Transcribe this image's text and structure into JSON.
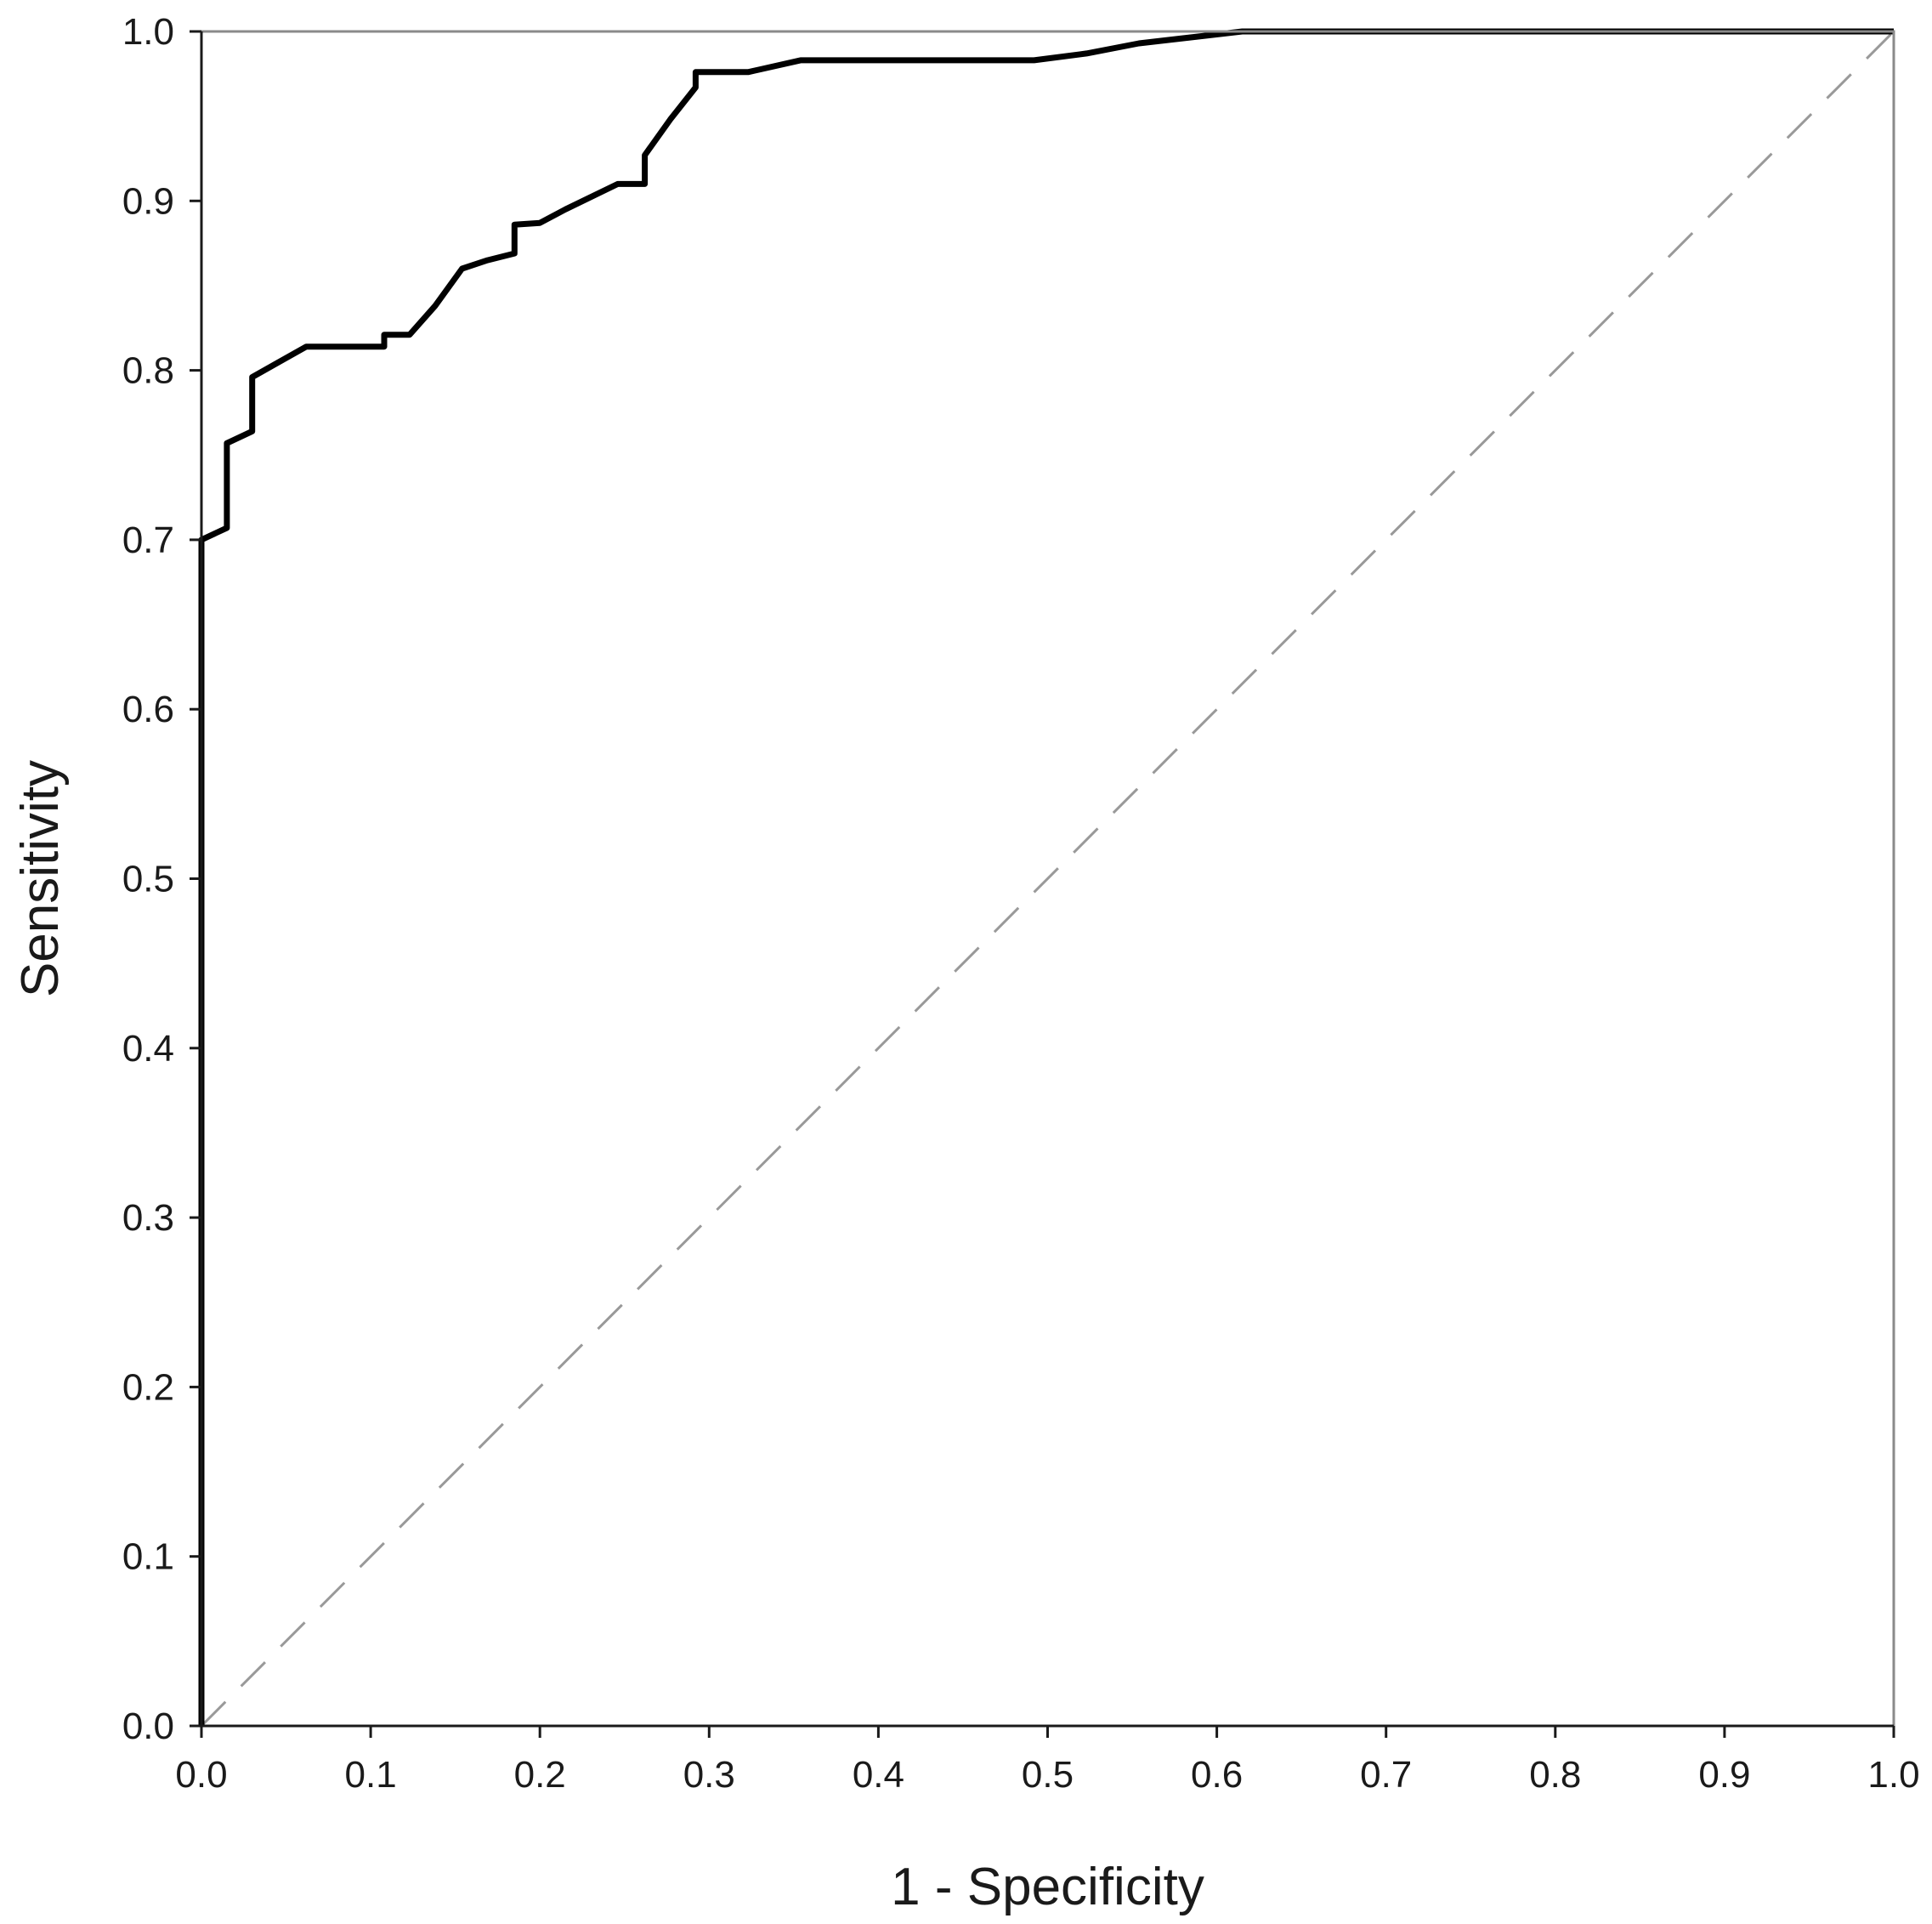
{
  "chart_data": {
    "type": "line",
    "title": "",
    "xlabel": "1 - Specificity",
    "ylabel": "Sensitivity",
    "xlim": [
      0.0,
      1.0
    ],
    "ylim": [
      0.0,
      1.0
    ],
    "grid": false,
    "x_ticks": [
      "0.0",
      "0.1",
      "0.2",
      "0.3",
      "0.4",
      "0.5",
      "0.6",
      "0.7",
      "0.8",
      "0.9",
      "1.0"
    ],
    "y_ticks": [
      "0.0",
      "0.1",
      "0.2",
      "0.3",
      "0.4",
      "0.5",
      "0.6",
      "0.7",
      "0.8",
      "0.9",
      "1.0"
    ],
    "series": [
      {
        "style": "solid",
        "color": "#000000",
        "x": [
          0.0,
          0.0,
          0.015,
          0.015,
          0.03,
          0.03,
          0.046,
          0.062,
          0.108,
          0.108,
          0.123,
          0.138,
          0.154,
          0.169,
          0.185,
          0.185,
          0.2,
          0.215,
          0.246,
          0.262,
          0.262,
          0.277,
          0.292,
          0.292,
          0.323,
          0.354,
          0.385,
          0.492,
          0.523,
          0.554,
          0.615,
          0.662,
          1.0
        ],
        "y": [
          0.0,
          0.7,
          0.707,
          0.757,
          0.764,
          0.796,
          0.805,
          0.814,
          0.814,
          0.821,
          0.821,
          0.838,
          0.86,
          0.865,
          0.869,
          0.886,
          0.887,
          0.895,
          0.91,
          0.91,
          0.927,
          0.948,
          0.967,
          0.976,
          0.976,
          0.983,
          0.983,
          0.983,
          0.987,
          0.993,
          1.0,
          1.0,
          1.0
        ]
      },
      {
        "style": "dashed",
        "color": "#999999",
        "x": [
          0.0,
          1.0
        ],
        "y": [
          0.0,
          1.0
        ]
      }
    ]
  }
}
